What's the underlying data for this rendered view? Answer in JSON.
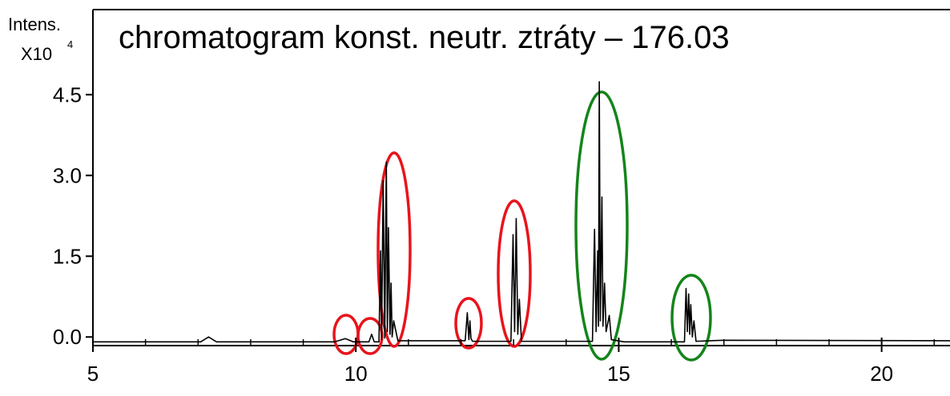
{
  "chart_data": {
    "type": "line",
    "title": "chromatogram konst. neutr. ztráty – 176.03",
    "ylabel": "Intens.",
    "ylabel_multiplier": "X10",
    "ylabel_exponent": "4",
    "color": "#000000",
    "xlim": [
      5,
      21.3
    ],
    "ylim": [
      -0.16,
      6.08
    ],
    "xticks": [
      5,
      10,
      15,
      20
    ],
    "yticks": [
      {
        "value": 0,
        "label": "0.0"
      },
      1.5,
      {
        "value": 3,
        "label": "3.0"
      },
      4.5
    ],
    "x": [
      5,
      7.05,
      7.2,
      7.35,
      9.6,
      9.8,
      9.95,
      10.25,
      10.3,
      10.35,
      10.44,
      10.47,
      10.49,
      10.52,
      10.55,
      10.58,
      10.6,
      10.62,
      10.65,
      10.67,
      10.69,
      10.72,
      10.8,
      11.5,
      12.08,
      12.12,
      12.15,
      12.17,
      12.19,
      12.22,
      12.95,
      12.99,
      13.02,
      13.05,
      13.08,
      13.11,
      13.15,
      14.5,
      14.54,
      14.57,
      14.6,
      14.615,
      14.63,
      14.65,
      14.68,
      14.7,
      14.73,
      14.76,
      14.82,
      14.86,
      15.1,
      16.25,
      16.28,
      16.305,
      16.33,
      16.35,
      16.37,
      16.4,
      16.43,
      16.47,
      17,
      21.3
    ],
    "values": [
      -0.09,
      -0.09,
      0.0,
      -0.09,
      -0.09,
      -0.03,
      -0.09,
      -0.09,
      0.05,
      -0.09,
      -0.09,
      1.6,
      -0.05,
      2.9,
      -0.02,
      3.25,
      0.1,
      2.03,
      0.05,
      1.0,
      0.0,
      0.3,
      -0.07,
      -0.07,
      -0.07,
      0.45,
      -0.05,
      0.3,
      -0.03,
      -0.08,
      -0.08,
      1.9,
      0.1,
      2.2,
      0.05,
      0.7,
      -0.08,
      -0.08,
      2.0,
      0.1,
      1.6,
      0.2,
      4.74,
      0.3,
      2.6,
      0.2,
      1.0,
      0.1,
      0.4,
      -0.05,
      -0.09,
      -0.09,
      0.9,
      0.1,
      0.8,
      0.05,
      0.6,
      0.0,
      0.3,
      -0.08,
      -0.06,
      -0.07
    ]
  }
}
